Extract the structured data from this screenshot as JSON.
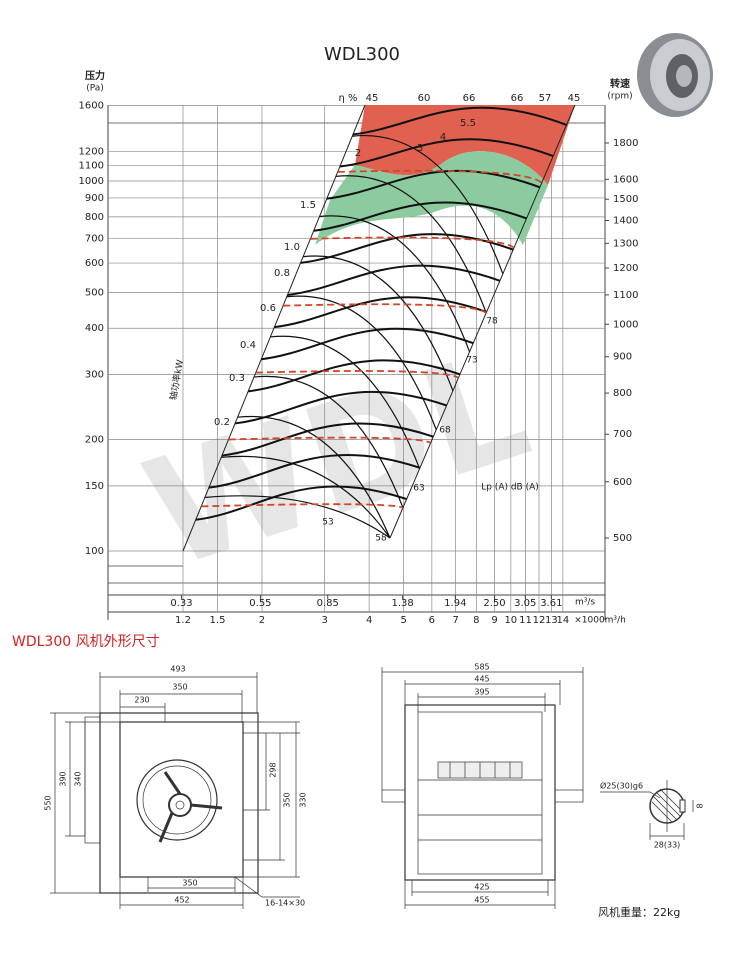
{
  "title": "WDL300",
  "watermark": "WDL",
  "pressure_axis": {
    "label": "压力",
    "unit": "(Pa)",
    "ticks": [
      1600,
      1200,
      1100,
      1000,
      900,
      800,
      700,
      600,
      500,
      400,
      300,
      200,
      150,
      100
    ]
  },
  "speed_axis": {
    "label": "转速",
    "unit": "(rpm)",
    "ticks": [
      1800,
      1600,
      1500,
      1400,
      1300,
      1200,
      1100,
      1000,
      900,
      800,
      700,
      600,
      500
    ]
  },
  "efficiency": {
    "label": "η %",
    "values": [
      45,
      60,
      66,
      66,
      57,
      45
    ]
  },
  "power": {
    "label": "轴功率kW",
    "values": [
      "5.5",
      "4",
      "3",
      "2",
      "1.5",
      "1.0",
      "0.8",
      "0.6",
      "0.4",
      "0.3",
      "0.2"
    ]
  },
  "noise": {
    "label": "Lp (A) dB (A)",
    "values": [
      78,
      73,
      68,
      63,
      58,
      53
    ]
  },
  "flow_m3s": {
    "unit": "m³/s",
    "ticks": [
      "0.33",
      "0.55",
      "0.85",
      "1.38",
      "1.94",
      "2.50",
      "3.05",
      "3.61"
    ]
  },
  "flow_m3h": {
    "unit": "×1000m³/h",
    "ticks": [
      "1.2",
      "1.5",
      "2",
      "3",
      "4",
      "5",
      "6",
      "7",
      "8",
      "9",
      "10",
      "11",
      "12",
      "13",
      "14"
    ]
  },
  "section_title": "WDL300 风机外形尺寸",
  "front_view": {
    "dims": [
      "493",
      "350",
      "230",
      "550",
      "390",
      "340",
      "298",
      "350",
      "330",
      "350",
      "452",
      "16-14×30"
    ]
  },
  "side_view": {
    "dims": [
      "585",
      "445",
      "395",
      "425",
      "455"
    ]
  },
  "shaft": {
    "dims": [
      "Ø25(30)g6",
      "8",
      "28(33)"
    ]
  },
  "weight": "风机重量：22kg"
}
